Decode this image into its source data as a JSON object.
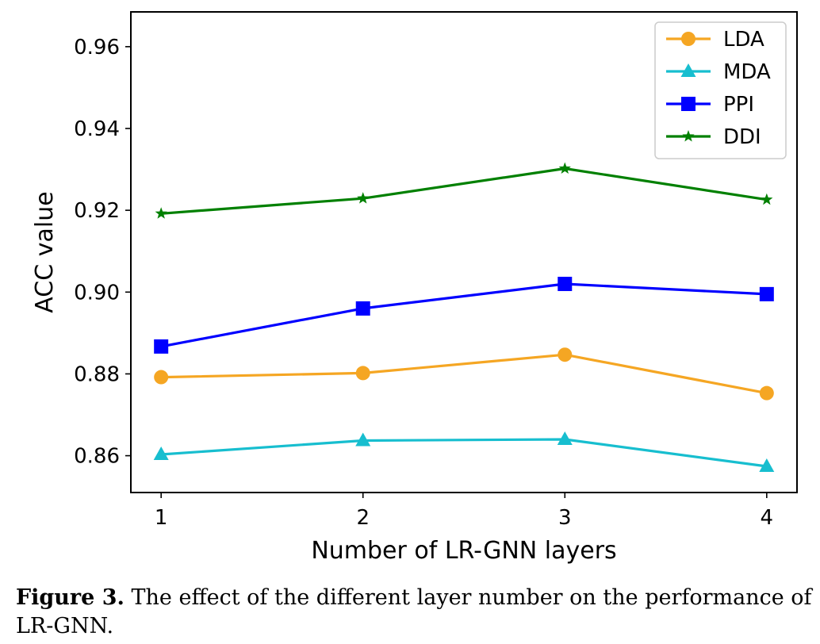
{
  "caption": {
    "label": "Figure 3.",
    "text": " The effect of the different layer number on the performance of LR-GNN."
  },
  "chart_data": {
    "type": "line",
    "title": "",
    "xlabel": "Number of LR-GNN layers",
    "ylabel": "ACC value",
    "x": [
      1,
      2,
      3,
      4
    ],
    "xlim": [
      0.85,
      4.15
    ],
    "ylim": [
      0.851,
      0.9685
    ],
    "xticks": [
      1,
      2,
      3,
      4
    ],
    "yticks": [
      0.86,
      0.88,
      0.9,
      0.92,
      0.94,
      0.96
    ],
    "ytick_labels": [
      "0.86",
      "0.88",
      "0.90",
      "0.92",
      "0.94",
      "0.96"
    ],
    "grid": false,
    "legend_position": "top-right",
    "series": [
      {
        "name": "LDA",
        "color": "#f5a623",
        "marker": "circle",
        "values": [
          0.8792,
          0.8802,
          0.8847,
          0.8753
        ]
      },
      {
        "name": "MDA",
        "color": "#17becf",
        "marker": "triangle",
        "values": [
          0.8603,
          0.8637,
          0.864,
          0.8574
        ]
      },
      {
        "name": "PPI",
        "color": "#0000ff",
        "marker": "square",
        "values": [
          0.8867,
          0.896,
          0.902,
          0.8995
        ]
      },
      {
        "name": "DDI",
        "color": "#008000",
        "marker": "star",
        "values": [
          0.9192,
          0.9229,
          0.9302,
          0.9226
        ]
      }
    ]
  }
}
